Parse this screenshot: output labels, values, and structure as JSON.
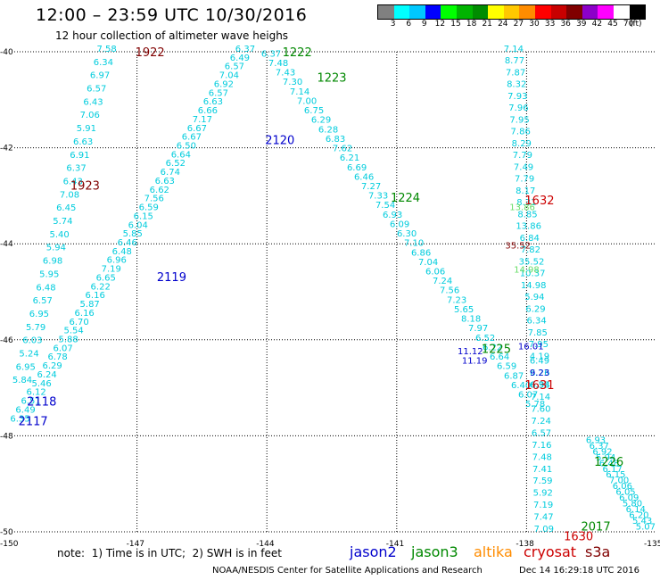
{
  "header": {
    "title": "12:00 – 23:59 UTC 10/30/2016",
    "subtitle": "12 hour collection of altimeter wave heighs"
  },
  "legend": {
    "labels": [
      "3",
      "6",
      "9",
      "12",
      "15",
      "18",
      "21",
      "24",
      "27",
      "30",
      "33",
      "36",
      "39",
      "42",
      "45",
      "70"
    ],
    "unit": "(ft)",
    "colors": [
      "#808080",
      "#00ffff",
      "#00c8ff",
      "#0000ff",
      "#00ff00",
      "#00b400",
      "#008c00",
      "#ffff00",
      "#ffc800",
      "#ff8c00",
      "#ff0000",
      "#c80000",
      "#800000",
      "#8c00c8",
      "#ff00ff",
      "#ffffff",
      "#000000"
    ]
  },
  "map": {
    "lat_ticks": [
      "-40",
      "-42",
      "-44",
      "-46",
      "-48",
      "-50"
    ],
    "lon_ticks": [
      "-150",
      "-147",
      "-144",
      "-141",
      "-138",
      "-135"
    ],
    "lon_range": [
      -150,
      -135
    ],
    "lat_range": [
      -50,
      -40
    ],
    "colors": {
      "cyan": "#00ccdd",
      "blue": "#0000cc",
      "green": "#008800",
      "darkred": "#800000",
      "red": "#cc0000",
      "lightgreen": "#66dd66"
    }
  },
  "track_labels": [
    {
      "text": "1922",
      "lon": -146.7,
      "lat": -40.02,
      "color": "#800000"
    },
    {
      "text": "1923",
      "lon": -148.2,
      "lat": -42.8,
      "color": "#800000"
    },
    {
      "text": "2118",
      "lon": -149.2,
      "lat": -47.3,
      "color": "#0000cc"
    },
    {
      "text": "2117",
      "lon": -149.4,
      "lat": -47.7,
      "color": "#0000cc"
    },
    {
      "text": "2119",
      "lon": -146.2,
      "lat": -44.7,
      "color": "#0000cc"
    },
    {
      "text": "2120",
      "lon": -143.7,
      "lat": -41.85,
      "color": "#0000cc"
    },
    {
      "text": "1222",
      "lon": -143.3,
      "lat": -40.02,
      "color": "#008800"
    },
    {
      "text": "1223",
      "lon": -142.5,
      "lat": -40.55,
      "color": "#008800"
    },
    {
      "text": "1224",
      "lon": -140.8,
      "lat": -43.05,
      "color": "#008800"
    },
    {
      "text": "1225",
      "lon": -138.7,
      "lat": -46.2,
      "color": "#008800"
    },
    {
      "text": "1226",
      "lon": -136.1,
      "lat": -48.55,
      "color": "#008800"
    },
    {
      "text": "2017",
      "lon": -136.4,
      "lat": -49.9,
      "color": "#008800"
    },
    {
      "text": "1632",
      "lon": -137.7,
      "lat": -43.1,
      "color": "#cc0000"
    },
    {
      "text": "1631",
      "lon": -137.7,
      "lat": -46.95,
      "color": "#cc0000"
    },
    {
      "text": "1630",
      "lon": -136.8,
      "lat": -50.1,
      "color": "#cc0000"
    }
  ],
  "swh_tracks": [
    {
      "name": "track-1922",
      "start": [
        -147.7,
        -40.0
      ],
      "end": [
        -149.65,
        -46.9
      ],
      "color": "#00ccdd",
      "values": [
        "7.58",
        "6.34",
        "6.97",
        "6.57",
        "6.43",
        "7.06",
        "5.91",
        "6.63",
        "6.91",
        "6.37",
        "6.43",
        "7.08",
        "6.45",
        "5.74",
        "5.40",
        "5.94",
        "6.98",
        "5.95",
        "6.48",
        "6.57",
        "6.95",
        "5.79",
        "6.03",
        "5.24",
        "6.95",
        "5.84"
      ]
    },
    {
      "name": "track-2117",
      "start": [
        -144.5,
        -40.0
      ],
      "end": [
        -149.7,
        -47.7
      ],
      "color": "#00ccdd",
      "values": [
        "6.37",
        "6.49",
        "6.57",
        "7.04",
        "6.92",
        "6.57",
        "6.63",
        "6.66",
        "7.17",
        "6.67",
        "6.67",
        "6.50",
        "6.64",
        "6.52",
        "6.74",
        "6.63",
        "6.62",
        "7.56",
        "6.59",
        "6.15",
        "6.04",
        "5.85",
        "6.46",
        "6.48",
        "6.96",
        "7.19",
        "6.65",
        "6.22",
        "6.16",
        "5.87",
        "6.16",
        "6.70",
        "5.54",
        "5.88",
        "6.07",
        "6.78",
        "6.29",
        "6.24",
        "5.46",
        "6.12",
        "6.51",
        "6.49",
        "6.35"
      ]
    },
    {
      "name": "track-1222",
      "start": [
        -143.9,
        -40.1
      ],
      "end": [
        -137.8,
        -47.4
      ],
      "color": "#00ccdd",
      "values": [
        "6.37",
        "7.48",
        "7.43",
        "7.30",
        "7.14",
        "7.00",
        "6.75",
        "6.29",
        "6.28",
        "6.83",
        "7.62",
        "6.21",
        "6.69",
        "6.46",
        "7.27",
        "7.33",
        "7.54",
        "6.93",
        "6.09",
        "6.30",
        "7.10",
        "6.86",
        "7.04",
        "6.06",
        "7.24",
        "7.56",
        "7.23",
        "5.65",
        "8.18",
        "7.97",
        "6.52",
        "6.22",
        "6.64",
        "6.59",
        "6.87",
        "6.40",
        "6.07",
        "5.78"
      ]
    },
    {
      "name": "track-1632",
      "start": [
        -138.3,
        -40.0
      ],
      "end": [
        -137.7,
        -46.4
      ],
      "color": "#00ccdd",
      "values": [
        "7.14",
        "8.77",
        "7.87",
        "8.32",
        "7.93",
        "7.96",
        "7.95",
        "7.86",
        "8.29",
        "7.79",
        "7.49",
        "7.79",
        "8.17",
        "8.31",
        "8.85",
        "13.86",
        "6.84",
        "7.82",
        "35.52",
        "10.37",
        "14.98",
        "5.94",
        "6.29",
        "6.34",
        "7.85",
        "7.95",
        "4.19"
      ]
    },
    {
      "name": "track-1631",
      "start": [
        -137.7,
        -46.5
      ],
      "end": [
        -137.6,
        -50.0
      ],
      "color": "#00ccdd",
      "values": [
        "6.49",
        "6.26",
        "6.94",
        "7.14",
        "7.60",
        "7.24",
        "6.57",
        "7.16",
        "7.48",
        "7.41",
        "7.59",
        "5.92",
        "7.19",
        "7.47",
        "7.09"
      ]
    },
    {
      "name": "track-1226",
      "start": [
        -136.4,
        -48.15
      ],
      "end": [
        -135.25,
        -49.95
      ],
      "color": "#00ccdd",
      "values": [
        "6.93",
        "6.37",
        "6.92",
        "5.94",
        "6.48",
        "6.17",
        "6.15",
        "7.00",
        "6.06",
        "6.05",
        "6.09",
        "5.80",
        "6.14",
        "6.20",
        "5.43",
        "5.07"
      ]
    }
  ],
  "colored_values": [
    {
      "text": "11.12",
      "lon": -139.3,
      "lat": -46.3,
      "color": "#0000cc"
    },
    {
      "text": "11.19",
      "lon": -139.2,
      "lat": -46.5,
      "color": "#0000cc"
    },
    {
      "text": "16.01",
      "lon": -137.9,
      "lat": -46.2,
      "color": "#0000cc"
    },
    {
      "text": "9.23",
      "lon": -137.7,
      "lat": -46.75,
      "color": "#0000cc"
    },
    {
      "text": "6.38",
      "lon": -137.7,
      "lat": -47.0,
      "color": "#00ccdd"
    },
    {
      "text": "13.86",
      "lon": -138.1,
      "lat": -43.3,
      "color": "#66dd66"
    },
    {
      "text": "14.98",
      "lon": -138.0,
      "lat": -44.6,
      "color": "#66dd66"
    },
    {
      "text": "35.52",
      "lon": -138.2,
      "lat": -44.1,
      "color": "#800000"
    }
  ],
  "footer": {
    "note": "note:  1) Time is in UTC;  2) SWH is in feet",
    "satellites": [
      {
        "name": "jason2",
        "color": "#0000cc"
      },
      {
        "name": "jason3",
        "color": "#008800"
      },
      {
        "name": "altika",
        "color": "#ff8c00"
      },
      {
        "name": "cryosat",
        "color": "#cc0000"
      },
      {
        "name": "s3a",
        "color": "#800000"
      }
    ],
    "credit": "NOAA/NESDIS Center for Satellite Applications and Research",
    "timestamp": "Dec 14 16:29:18 UTC 2016"
  }
}
